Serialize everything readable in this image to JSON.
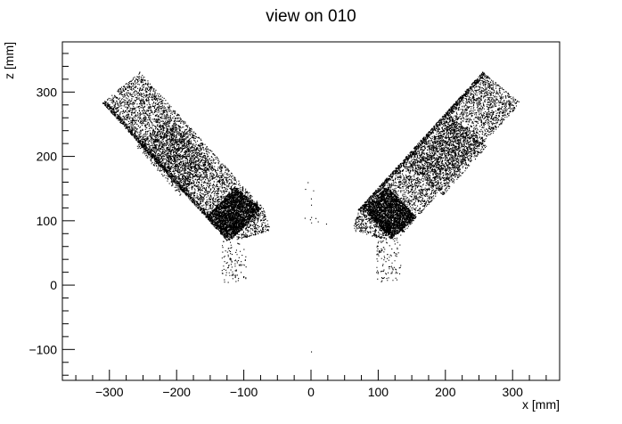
{
  "chart_data": {
    "type": "scatter",
    "title": "view on 010",
    "xlabel": "x [mm]",
    "ylabel": "z [mm]",
    "xlim": [
      -370,
      370
    ],
    "ylim": [
      -148,
      378
    ],
    "x_ticks": [
      -300,
      -200,
      -100,
      0,
      100,
      200,
      300
    ],
    "y_ticks": [
      -100,
      0,
      100,
      200,
      300
    ],
    "x_tick_labels": [
      "−300",
      "−200",
      "−100",
      "0",
      "100",
      "200",
      "300"
    ],
    "y_tick_labels": [
      "−100",
      "0",
      "100",
      "200",
      "300"
    ],
    "grid": false,
    "legend": "none",
    "marker_color": "#000000",
    "regions": [
      {
        "shape": "band",
        "from": [
          -283,
          308
        ],
        "to": [
          -97,
          93
        ],
        "half_width": 37,
        "count": 5200,
        "weight": 0.75
      },
      {
        "shape": "band",
        "from": [
          -235,
          238
        ],
        "to": [
          -170,
          162
        ],
        "half_width": 34,
        "count": 1400,
        "weight": 0.8
      },
      {
        "shape": "band",
        "from": [
          -135,
          130
        ],
        "to": [
          -97,
          96
        ],
        "half_width": 32,
        "count": 2600,
        "weight": 1.0
      },
      {
        "shape": "band",
        "from": [
          -283,
          308
        ],
        "to": [
          -97,
          93
        ],
        "half_width": 37,
        "count": 900,
        "weight": 0.9,
        "edge": "lower"
      },
      {
        "shape": "band",
        "from": [
          283,
          308
        ],
        "to": [
          97,
          93
        ],
        "half_width": 37,
        "count": 5200,
        "weight": 0.75
      },
      {
        "shape": "band",
        "from": [
          235,
          238
        ],
        "to": [
          170,
          162
        ],
        "half_width": 34,
        "count": 1400,
        "weight": 0.8
      },
      {
        "shape": "band",
        "from": [
          135,
          130
        ],
        "to": [
          97,
          96
        ],
        "half_width": 32,
        "count": 2600,
        "weight": 1.0
      },
      {
        "shape": "band",
        "from": [
          283,
          308
        ],
        "to": [
          97,
          93
        ],
        "half_width": 37,
        "count": 900,
        "weight": 0.9,
        "edge": "upper"
      },
      {
        "shape": "band",
        "from": [
          -115,
          85
        ],
        "to": [
          -65,
          100
        ],
        "half_width": 15,
        "count": 500,
        "weight": 0.6
      },
      {
        "shape": "band",
        "from": [
          115,
          85
        ],
        "to": [
          65,
          100
        ],
        "half_width": 15,
        "count": 500,
        "weight": 0.6
      },
      {
        "shape": "band",
        "from": [
          -115,
          70
        ],
        "to": [
          -115,
          5
        ],
        "half_width": 18,
        "count": 220,
        "weight": 0.5
      },
      {
        "shape": "band",
        "from": [
          115,
          70
        ],
        "to": [
          115,
          5
        ],
        "half_width": 18,
        "count": 220,
        "weight": 0.5
      },
      {
        "shape": "band",
        "from": [
          -10,
          150
        ],
        "to": [
          10,
          90
        ],
        "half_width": 15,
        "count": 25,
        "weight": 0.4
      }
    ],
    "outliers": [
      [
        0,
        -103
      ],
      [
        -5,
        160
      ],
      [
        0,
        125
      ]
    ]
  }
}
